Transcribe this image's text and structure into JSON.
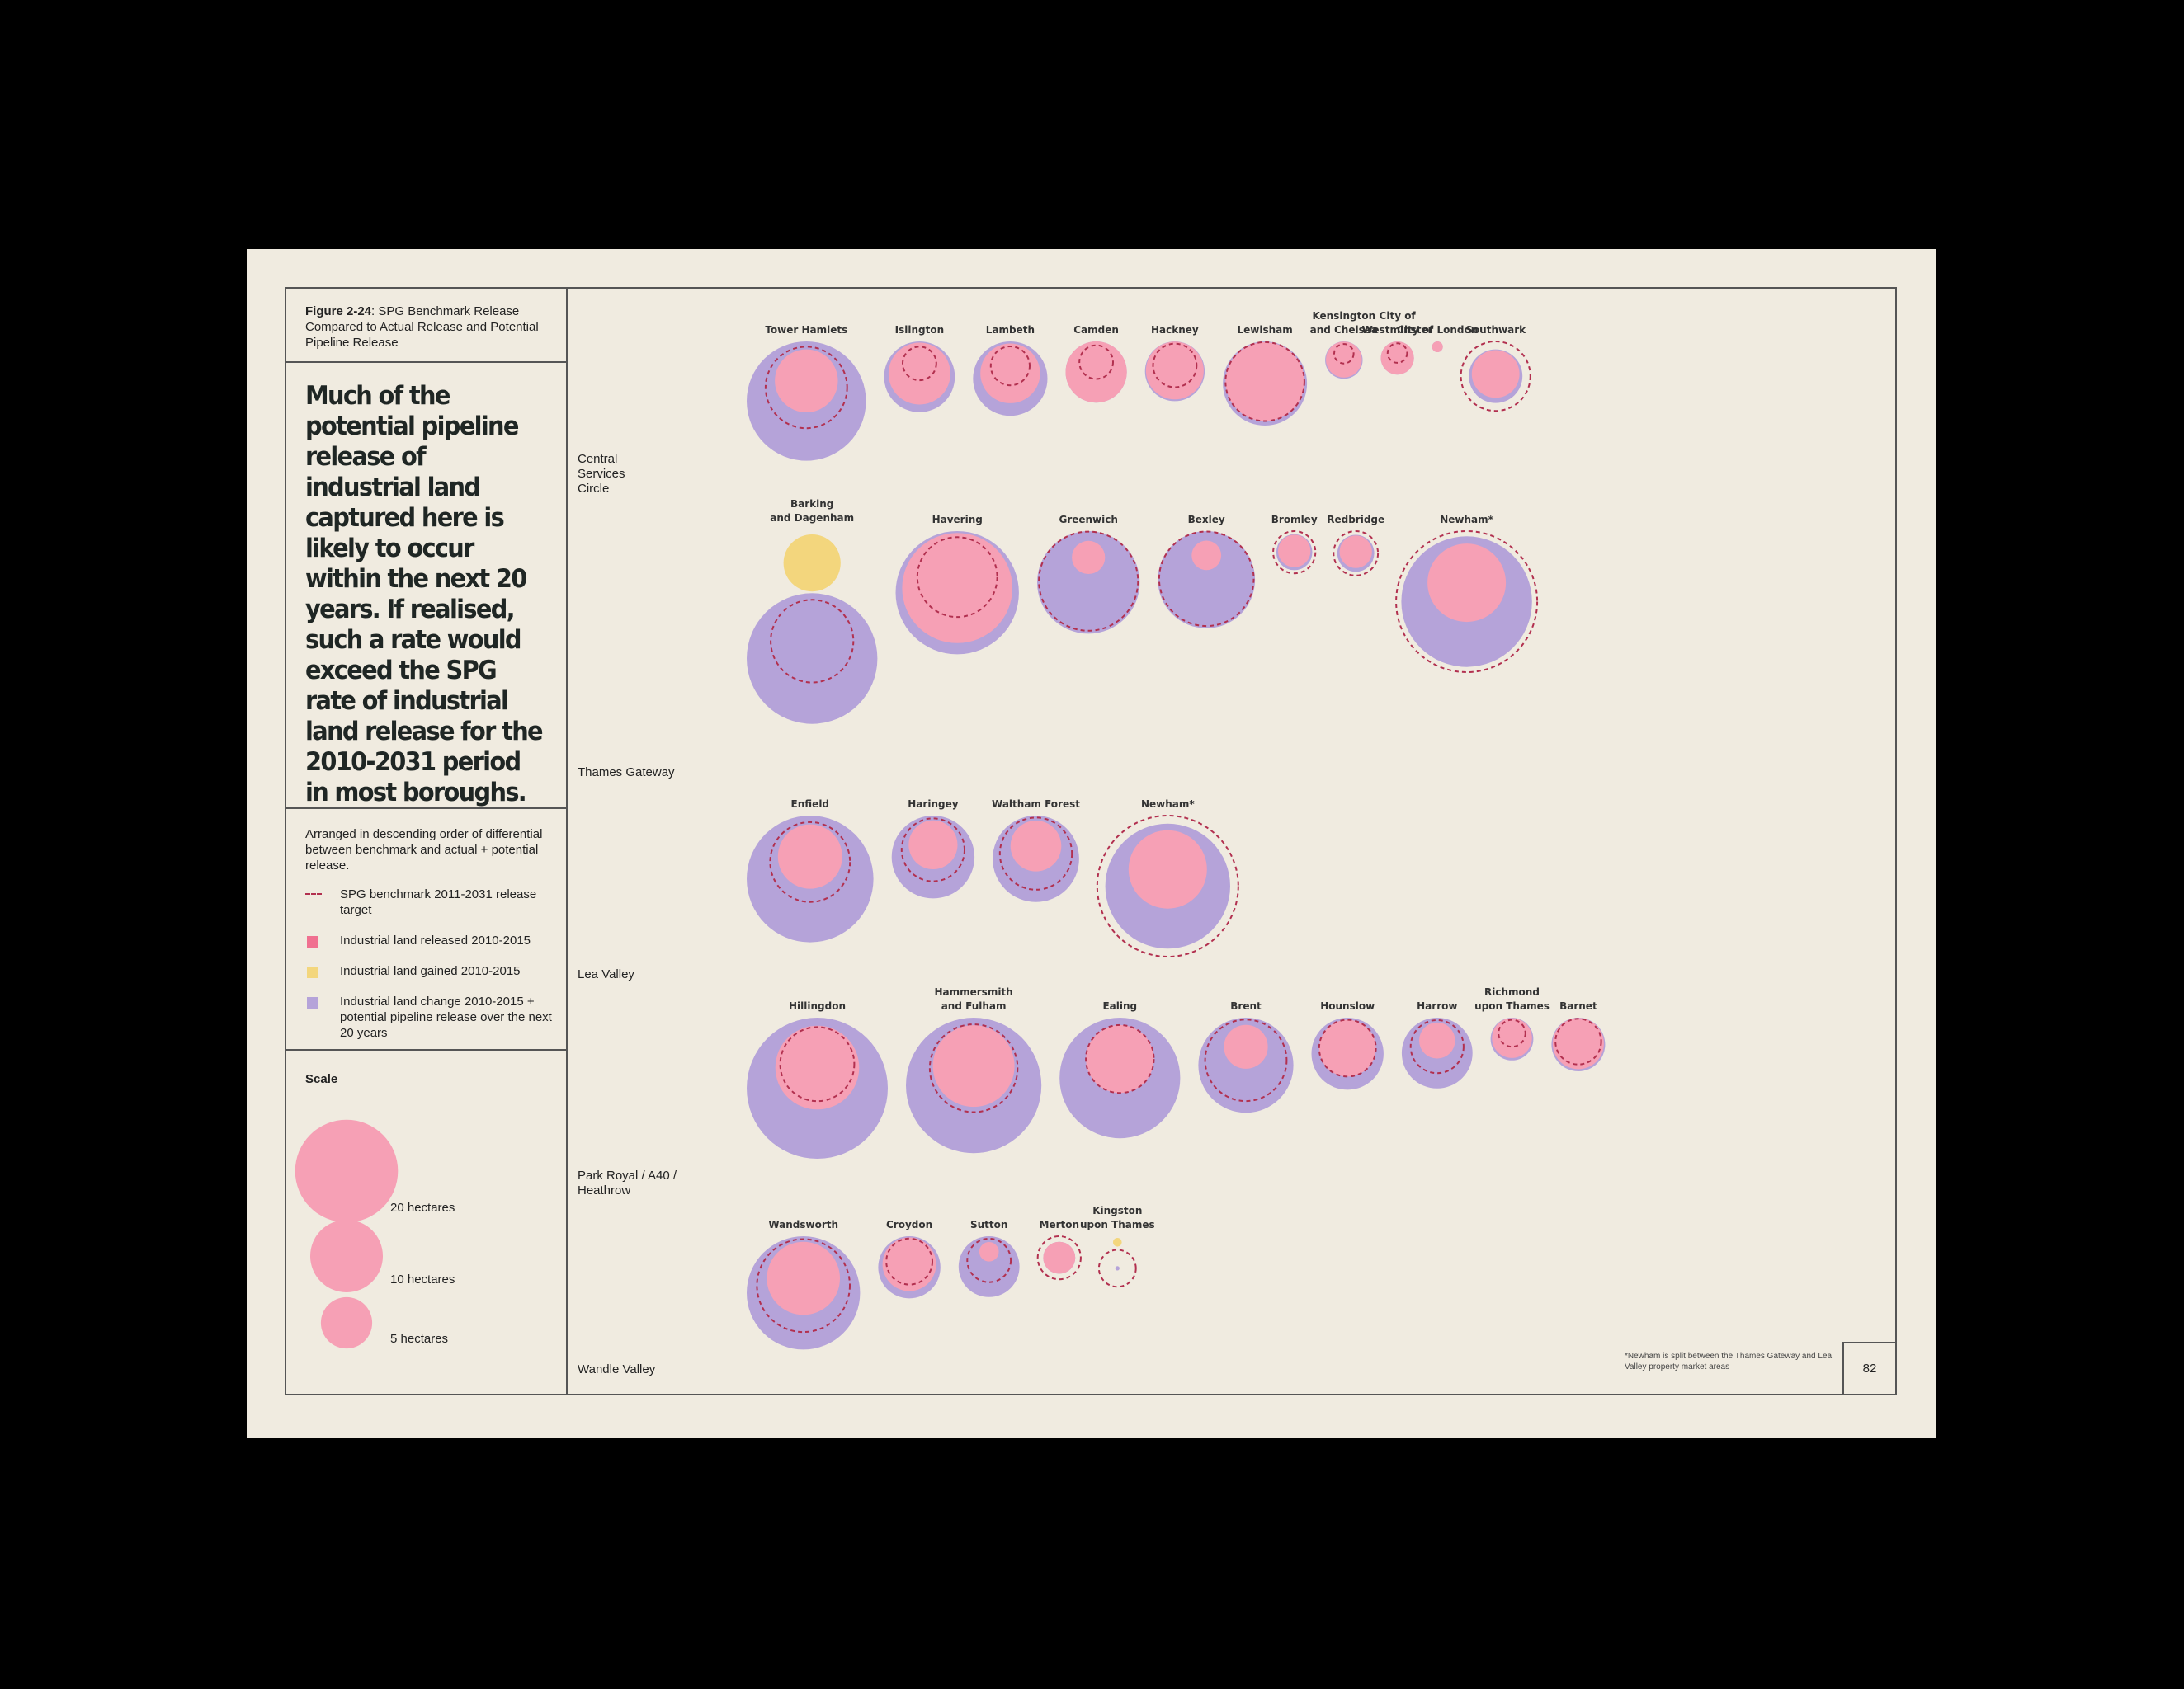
{
  "figure": {
    "label": "Figure 2-24",
    "caption": ": SPG Benchmark Release Compared to Actual Release and Potential Pipeline Release"
  },
  "headline": "Much of the potential pipeline release of industrial land captured here is likely to occur within the next 20 years. If realised, such a rate would exceed the SPG rate of industrial land release for the 2010-2031 period in most boroughs.",
  "order_note": "Arranged in descending order of differential between benchmark and actual + potential release.",
  "legend": [
    {
      "key": "benchmark",
      "label": "SPG benchmark 2011-2031 release target"
    },
    {
      "key": "released",
      "label": "Industrial land released 2010-2015"
    },
    {
      "key": "gained",
      "label": "Industrial land gained 2010-2015"
    },
    {
      "key": "change",
      "label": "Industrial land change 2010-2015 + potential pipeline release over the next 20 years"
    }
  ],
  "scale": {
    "title": "Scale",
    "items": [
      {
        "value": 20,
        "label": "20 hectares"
      },
      {
        "value": 10,
        "label": "10 hectares"
      },
      {
        "value": 5,
        "label": "5 hectares"
      }
    ]
  },
  "regions": [
    "Central Services Circle",
    "Thames Gateway",
    "Lea Valley",
    "Park Royal / A40 / Heathrow",
    "Wandle Valley"
  ],
  "colors": {
    "released": "#F6A0B5",
    "gained": "#F3D67D",
    "change": "#B5A3D9",
    "benchmark": "#B2304F"
  },
  "footnote": "*Newham is split between the Thames Gateway and Lea Valley property market areas",
  "page_number": "82",
  "chart_data": {
    "type": "proportional-circles",
    "title": "SPG Benchmark Release Compared to Actual Release and Potential Pipeline Release",
    "units": "hectares",
    "series": [
      "benchmark",
      "released",
      "gained",
      "change"
    ],
    "groups": [
      {
        "region": "Central Services Circle",
        "boroughs": [
          {
            "name": "Tower Hamlets",
            "change": 37.5,
            "released": 10.5,
            "benchmark": 17.5,
            "gained": 0
          },
          {
            "name": "Islington",
            "change": 13.2,
            "released": 10.1,
            "benchmark": 3.0,
            "gained": 0
          },
          {
            "name": "Lambeth",
            "change": 14.6,
            "released": 9.4,
            "benchmark": 4.0,
            "gained": 0
          },
          {
            "name": "Camden",
            "change": 9.9,
            "released": 9.9,
            "benchmark": 3.0,
            "gained": 0
          },
          {
            "name": "Hackney",
            "change": 9.4,
            "released": 8.8,
            "benchmark": 5.0,
            "gained": 0
          },
          {
            "name": "Lewisham",
            "change": 18.7,
            "released": 16.4,
            "benchmark": 16.4,
            "gained": 0
          },
          {
            "name": "Kensington and Chelsea",
            "change": 3.7,
            "released": 3.4,
            "benchmark": 1.0,
            "gained": 0
          },
          {
            "name": "City of Westminster",
            "change": 2.9,
            "released": 2.9,
            "benchmark": 1.0,
            "gained": 0
          },
          {
            "name": "City of London",
            "change": 0.3,
            "released": 0.3,
            "benchmark": 0,
            "gained": 0
          },
          {
            "name": "Southwark",
            "change": 7.6,
            "released": 6.0,
            "benchmark": 12.7,
            "gained": 0
          }
        ]
      },
      {
        "region": "Thames Gateway",
        "boroughs": [
          {
            "name": "Barking and Dagenham",
            "change": 45.1,
            "released": 0,
            "benchmark": 18.0,
            "gained": 8.6
          },
          {
            "name": "Havering",
            "change": 40.1,
            "released": 32.0,
            "benchmark": 16.8,
            "gained": 0
          },
          {
            "name": "Greenwich",
            "change": 27.8,
            "released": 2.9,
            "benchmark": 25.9,
            "gained": 0
          },
          {
            "name": "Bexley",
            "change": 24.9,
            "released": 2.3,
            "benchmark": 23.6,
            "gained": 0
          },
          {
            "name": "Bromley",
            "change": 3.4,
            "released": 2.8,
            "benchmark": 4.7,
            "gained": 0
          },
          {
            "name": "Redbridge",
            "change": 3.6,
            "released": 2.8,
            "benchmark": 5.2,
            "gained": 0
          },
          {
            "name": "Newham*",
            "change": 45.1,
            "released": 16.2,
            "benchmark": 52.5,
            "gained": 0
          }
        ]
      },
      {
        "region": "Lea Valley",
        "boroughs": [
          {
            "name": "Enfield",
            "change": 42.4,
            "released": 10.9,
            "benchmark": 16.8,
            "gained": 0
          },
          {
            "name": "Haringey",
            "change": 18.1,
            "released": 6.3,
            "benchmark": 10.4,
            "gained": 0
          },
          {
            "name": "Waltham Forest",
            "change": 19.7,
            "released": 6.8,
            "benchmark": 13.7,
            "gained": 0
          },
          {
            "name": "Newham*",
            "change": 41.2,
            "released": 16.2,
            "benchmark": 52.5,
            "gained": 0
          }
        ]
      },
      {
        "region": "Park Royal / A40 / Heathrow",
        "boroughs": [
          {
            "name": "Hillingdon",
            "change": 52.5,
            "released": 18.5,
            "benchmark": 14.5,
            "gained": 0
          },
          {
            "name": "Hammersmith and Fulham",
            "change": 48.4,
            "released": 17.6,
            "benchmark": 20.3,
            "gained": 0
          },
          {
            "name": "Ealing",
            "change": 38.4,
            "released": 12.2,
            "benchmark": 12.2,
            "gained": 0
          },
          {
            "name": "Brent",
            "change": 23.8,
            "released": 5.1,
            "benchmark": 17.5,
            "gained": 0
          },
          {
            "name": "Hounslow",
            "change": 13.7,
            "released": 8.5,
            "benchmark": 8.5,
            "gained": 0
          },
          {
            "name": "Harrow",
            "change": 13.2,
            "released": 3.4,
            "benchmark": 7.4,
            "gained": 0
          },
          {
            "name": "Richmond upon Thames",
            "change": 4.8,
            "released": 4.2,
            "benchmark": 1.9,
            "gained": 0
          },
          {
            "name": "Barnet",
            "change": 7.6,
            "released": 6.9,
            "benchmark": 5.5,
            "gained": 0
          }
        ]
      },
      {
        "region": "Wandle Valley",
        "boroughs": [
          {
            "name": "Wandsworth",
            "change": 33.9,
            "released": 14.1,
            "benchmark": 22.8,
            "gained": 0
          },
          {
            "name": "Croydon",
            "change": 10.2,
            "released": 7.6,
            "benchmark": 5.6,
            "gained": 0
          },
          {
            "name": "Sutton",
            "change": 9.8,
            "released": 1.0,
            "benchmark": 5.0,
            "gained": 0
          },
          {
            "name": "Merton",
            "change": 2.7,
            "released": 2.7,
            "benchmark": 4.9,
            "gained": 0
          },
          {
            "name": "Kingston upon Thames",
            "change": 0.05,
            "released": 0,
            "benchmark": 3.6,
            "gained": 0.2
          }
        ]
      }
    ]
  }
}
